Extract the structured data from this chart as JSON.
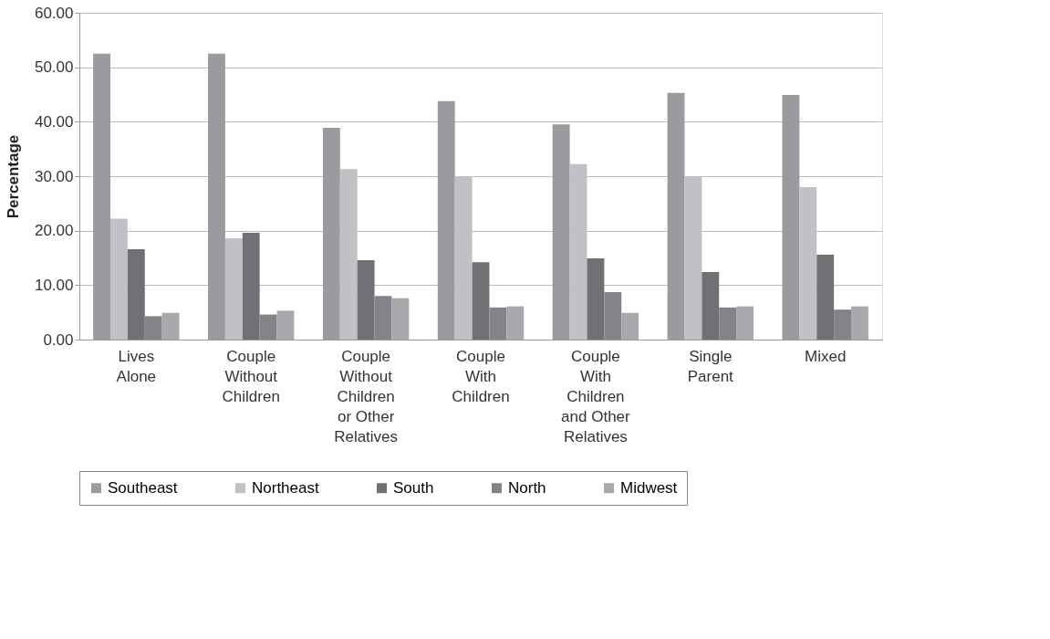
{
  "chart_data": {
    "type": "bar",
    "ylabel": "Percentage",
    "categories": [
      "Lives Alone",
      "Couple Without Children",
      "Couple Without Children or Other Relatives",
      "Couple With Children",
      "Couple With Children and Other Relatives",
      "Single Parent",
      "Mixed"
    ],
    "series": [
      {
        "name": "Southeast",
        "color": "#9a9b9f",
        "values": [
          52.5,
          52.5,
          38.9,
          43.8,
          39.5,
          45.3,
          44.9
        ]
      },
      {
        "name": "Northeast",
        "color": "#c0c1c4",
        "values": [
          22.2,
          18.6,
          31.3,
          30.0,
          32.2,
          30.0,
          28.0
        ]
      },
      {
        "name": "South",
        "color": "#707175",
        "values": [
          16.6,
          19.6,
          14.6,
          14.2,
          14.9,
          12.4,
          15.6
        ]
      },
      {
        "name": "North",
        "color": "#838488",
        "values": [
          4.3,
          4.6,
          8.0,
          5.9,
          8.7,
          5.9,
          5.5
        ]
      },
      {
        "name": "Midwest",
        "color": "#a8a9ac",
        "values": [
          4.9,
          5.3,
          7.6,
          6.1,
          4.9,
          6.1,
          6.1
        ]
      }
    ],
    "ylim": [
      0,
      60
    ],
    "yticks": [
      {
        "value": 0,
        "label": "0.00"
      },
      {
        "value": 10,
        "label": "10.00"
      },
      {
        "value": 20,
        "label": "20.00"
      },
      {
        "value": 30,
        "label": "30.00"
      },
      {
        "value": 40,
        "label": "40.00"
      },
      {
        "value": 50,
        "label": "50.00"
      },
      {
        "value": 60,
        "label": "60.00"
      }
    ],
    "grid": "y",
    "legend": "bottom"
  }
}
